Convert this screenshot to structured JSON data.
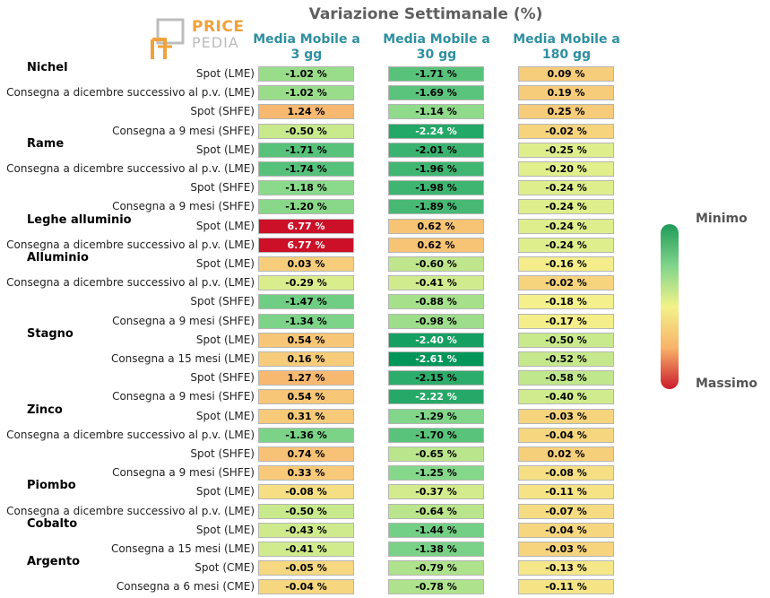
{
  "title": "Variazione Settimanale (%)",
  "logo": {
    "line1": "PRICE",
    "line2": "PEDIA"
  },
  "columns": [
    "Media Mobile a 3 gg",
    "Media Mobile a 30 gg",
    "Media Mobile a 180 gg"
  ],
  "legend": {
    "min_label": "Minimo",
    "max_label": "Massimo"
  },
  "chart_data": {
    "type": "heatmap",
    "title": "Variazione Settimanale (%)",
    "unit": "%",
    "color_scale": {
      "min_color": "#1f9a5a",
      "mid_color": "#f2f28a",
      "max_color": "#cc1a2b"
    },
    "columns": [
      "Media Mobile a 3 gg",
      "Media Mobile a 30 gg",
      "Media Mobile a 180 gg"
    ],
    "groups": [
      {
        "name": "Nichel",
        "rows": [
          {
            "label": "Spot (LME)",
            "values": [
              -1.02,
              -1.71,
              0.09
            ]
          },
          {
            "label": "Consegna a dicembre successivo al p.v. (LME)",
            "values": [
              -1.02,
              -1.69,
              0.19
            ]
          },
          {
            "label": "Spot (SHFE)",
            "values": [
              1.24,
              -1.14,
              0.25
            ]
          },
          {
            "label": "Consegna a 9 mesi (SHFE)",
            "values": [
              -0.5,
              -2.24,
              -0.02
            ]
          }
        ]
      },
      {
        "name": "Rame",
        "rows": [
          {
            "label": "Spot (LME)",
            "values": [
              -1.71,
              -2.01,
              -0.25
            ]
          },
          {
            "label": "Consegna a dicembre successivo al p.v. (LME)",
            "values": [
              -1.74,
              -1.96,
              -0.2
            ]
          },
          {
            "label": "Spot (SHFE)",
            "values": [
              -1.18,
              -1.98,
              -0.24
            ]
          },
          {
            "label": "Consegna a 9 mesi (SHFE)",
            "values": [
              -1.2,
              -1.89,
              -0.24
            ]
          }
        ]
      },
      {
        "name": "Leghe alluminio",
        "rows": [
          {
            "label": "Spot (LME)",
            "values": [
              6.77,
              0.62,
              -0.24
            ]
          },
          {
            "label": "Consegna a dicembre successivo al p.v. (LME)",
            "values": [
              6.77,
              0.62,
              -0.24
            ]
          }
        ]
      },
      {
        "name": "Alluminio",
        "rows": [
          {
            "label": "Spot (LME)",
            "values": [
              0.03,
              -0.6,
              -0.16
            ]
          },
          {
            "label": "Consegna a dicembre successivo al p.v. (LME)",
            "values": [
              -0.29,
              -0.41,
              -0.02
            ]
          },
          {
            "label": "Spot (SHFE)",
            "values": [
              -1.47,
              -0.88,
              -0.18
            ]
          },
          {
            "label": "Consegna a 9 mesi (SHFE)",
            "values": [
              -1.34,
              -0.98,
              -0.17
            ]
          }
        ]
      },
      {
        "name": "Stagno",
        "rows": [
          {
            "label": "Spot (LME)",
            "values": [
              0.54,
              -2.4,
              -0.5
            ]
          },
          {
            "label": "Consegna a 15 mesi (LME)",
            "values": [
              0.16,
              -2.61,
              -0.52
            ]
          },
          {
            "label": "Spot (SHFE)",
            "values": [
              1.27,
              -2.15,
              -0.58
            ]
          },
          {
            "label": "Consegna a 9 mesi (SHFE)",
            "values": [
              0.54,
              -2.22,
              -0.4
            ]
          }
        ]
      },
      {
        "name": "Zinco",
        "rows": [
          {
            "label": "Spot (LME)",
            "values": [
              0.31,
              -1.29,
              -0.03
            ]
          },
          {
            "label": "Consegna a dicembre successivo al p.v. (LME)",
            "values": [
              -1.36,
              -1.7,
              -0.04
            ]
          },
          {
            "label": "Spot (SHFE)",
            "values": [
              0.74,
              -0.65,
              0.02
            ]
          },
          {
            "label": "Consegna a 9 mesi (SHFE)",
            "values": [
              0.33,
              -1.25,
              -0.08
            ]
          }
        ]
      },
      {
        "name": "Piombo",
        "rows": [
          {
            "label": "Spot (LME)",
            "values": [
              -0.08,
              -0.37,
              -0.11
            ]
          },
          {
            "label": "Consegna a dicembre successivo al p.v. (LME)",
            "values": [
              -0.5,
              -0.64,
              -0.07
            ]
          }
        ]
      },
      {
        "name": "Cobalto",
        "rows": [
          {
            "label": "Spot (LME)",
            "values": [
              -0.43,
              -1.44,
              -0.04
            ]
          },
          {
            "label": "Consegna a 15 mesi (LME)",
            "values": [
              -0.41,
              -1.38,
              -0.03
            ]
          }
        ]
      },
      {
        "name": "Argento",
        "rows": [
          {
            "label": "Spot (CME)",
            "values": [
              -0.05,
              -0.79,
              -0.13
            ]
          },
          {
            "label": "Consegna a 6 mesi (CME)",
            "values": [
              -0.04,
              -0.78,
              -0.11
            ]
          }
        ]
      }
    ]
  }
}
